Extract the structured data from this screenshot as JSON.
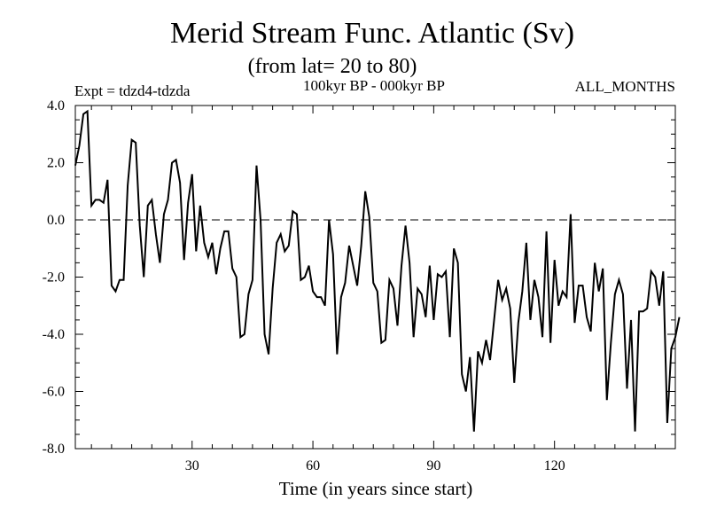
{
  "chart_data": {
    "type": "line",
    "title": "Merid Stream Func. Atlantic (Sv)",
    "subtitle": "(from lat= 20 to 80)",
    "experiment_label": "Expt = tdzd4-tdzda",
    "period_label": "100kyr BP - 000kyr BP",
    "months_label": "ALL_MONTHS",
    "xlabel": "Time (in years since start)",
    "ylabel": "",
    "xlim": [
      1,
      150
    ],
    "ylim": [
      -8,
      4
    ],
    "x_ticks": [
      30,
      60,
      90,
      120
    ],
    "x_tick_labels": [
      "30",
      "60",
      "90",
      "120"
    ],
    "y_ticks": [
      4,
      2,
      0,
      -2,
      -4,
      -6,
      -8
    ],
    "y_tick_labels": [
      "4.0",
      "2.0",
      "0.0",
      "-2.0",
      "-4.0",
      "-6.0",
      "-8.0"
    ],
    "reference_line": 0,
    "series": [
      {
        "name": "Merid Stream Func.",
        "x_start": 1,
        "x_step": 1,
        "values": [
          1.9,
          2.6,
          3.7,
          3.8,
          0.5,
          0.7,
          0.7,
          0.6,
          1.4,
          -2.3,
          -2.5,
          -2.1,
          -2.1,
          1.2,
          2.8,
          2.7,
          -0.2,
          -2.0,
          0.5,
          0.7,
          -0.5,
          -1.5,
          0.2,
          0.7,
          2.0,
          2.1,
          1.3,
          -1.4,
          0.6,
          1.6,
          -1.1,
          0.5,
          -0.8,
          -1.3,
          -0.8,
          -1.9,
          -1.0,
          -0.4,
          -0.4,
          -1.7,
          -2.0,
          -4.1,
          -4.0,
          -2.6,
          -2.1,
          1.9,
          0.0,
          -4.0,
          -4.7,
          -2.4,
          -0.8,
          -0.5,
          -1.1,
          -0.9,
          0.3,
          0.2,
          -2.1,
          -2.0,
          -1.6,
          -2.5,
          -2.7,
          -2.7,
          -3.0,
          0.0,
          -1.2,
          -4.7,
          -2.7,
          -2.2,
          -0.9,
          -1.6,
          -2.3,
          -0.9,
          1.0,
          0.1,
          -2.2,
          -2.5,
          -4.3,
          -4.2,
          -2.1,
          -2.4,
          -3.7,
          -1.6,
          -0.2,
          -1.5,
          -4.1,
          -2.4,
          -2.6,
          -3.4,
          -1.6,
          -3.5,
          -1.9,
          -2.0,
          -1.8,
          -4.1,
          -1.0,
          -1.5,
          -5.4,
          -6.0,
          -4.8,
          -7.4,
          -4.6,
          -5.0,
          -4.2,
          -4.9,
          -3.5,
          -2.1,
          -2.8,
          -2.4,
          -3.1,
          -5.7,
          -3.6,
          -2.5,
          -0.8,
          -3.5,
          -2.1,
          -2.7,
          -4.1,
          -0.4,
          -4.3,
          -1.4,
          -3.0,
          -2.5,
          -2.7,
          0.2,
          -3.6,
          -2.3,
          -2.3,
          -3.4,
          -3.9,
          -1.5,
          -2.5,
          -1.7,
          -6.3,
          -4.3,
          -2.6,
          -2.1,
          -2.6,
          -5.9,
          -3.5,
          -7.4,
          -3.2,
          -3.2,
          -3.1,
          -1.8,
          -2.0,
          -3.0,
          -1.8,
          -7.1,
          -4.5,
          -4.1,
          -3.4
        ]
      }
    ]
  }
}
